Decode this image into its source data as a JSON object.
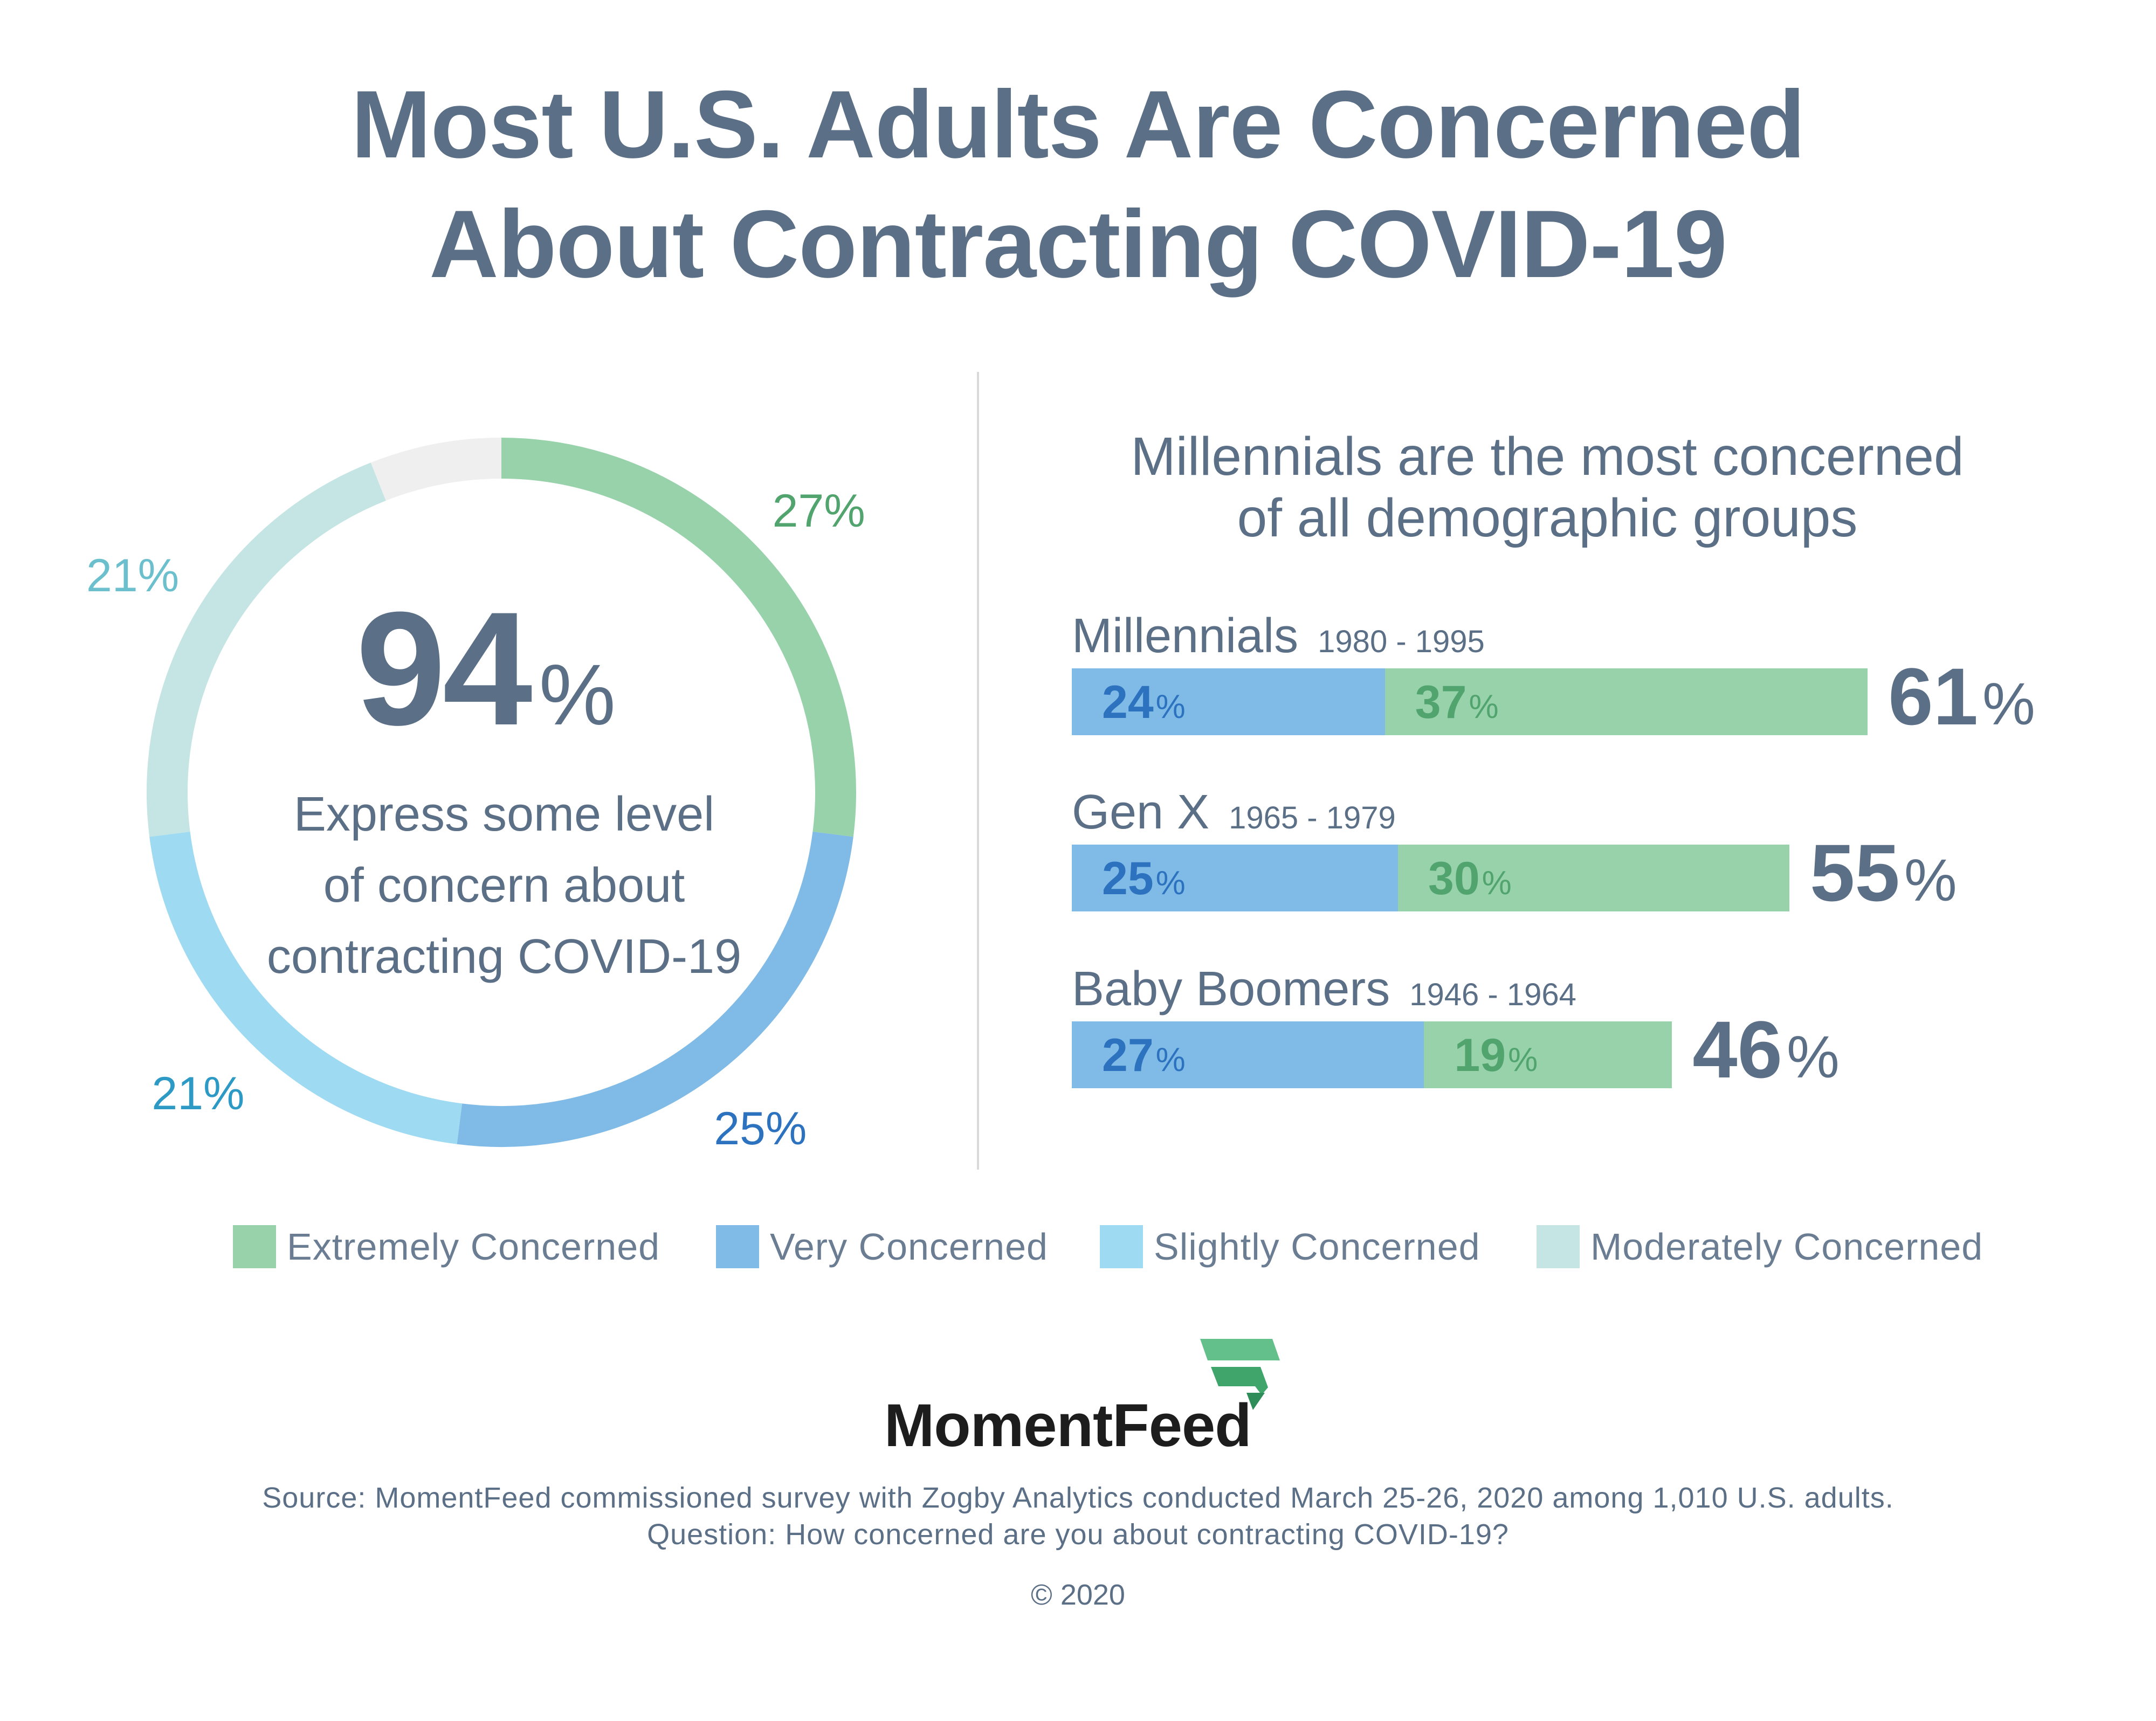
{
  "title_line1": "Most U.S. Adults Are Concerned",
  "title_line2": "About Contracting COVID-19",
  "donut": {
    "headline_value": "94",
    "headline_unit": "%",
    "caption_line1": "Express some level",
    "caption_line2": "of concern about",
    "caption_line3": "contracting COVID-19"
  },
  "bars": {
    "subtitle_line1": "Millennials are the most concerned",
    "subtitle_line2": "of all demographic groups"
  },
  "colors": {
    "extremely": "#97d2ab",
    "very": "#7fbbe6",
    "slightly": "#9edaf1",
    "moderately": "#c4e5e3",
    "unconcerned": "#efefef",
    "very_text": "#2c72bf",
    "extremely_text": "#52a46e"
  },
  "chart_data": [
    {
      "type": "pie",
      "categories": [
        "Extremely Concerned",
        "Very Concerned",
        "Slightly Concerned",
        "Moderately Concerned"
      ],
      "values": [
        27,
        25,
        21,
        21
      ],
      "labels": [
        "27%",
        "25%",
        "21%",
        "21%"
      ]
    },
    {
      "type": "bar",
      "categories": [
        "Millennials",
        "Gen X",
        "Baby Boomers"
      ],
      "years": [
        "1980 - 1995",
        "1965 - 1979",
        "1946 - 1964"
      ],
      "series": [
        {
          "name": "Very Concerned",
          "values": [
            24,
            25,
            27
          ]
        },
        {
          "name": "Extremely Concerned",
          "values": [
            37,
            30,
            19
          ]
        }
      ],
      "totals": [
        61,
        55,
        46
      ],
      "unit": "%"
    }
  ],
  "legend": [
    {
      "label": "Extremely Concerned"
    },
    {
      "label": "Very Concerned"
    },
    {
      "label": "Slightly Concerned"
    },
    {
      "label": "Moderately Concerned"
    }
  ],
  "logo": {
    "name": "MomentFeed"
  },
  "footer": {
    "source_line1": "Source: MomentFeed commissioned survey with Zogby Analytics conducted March 25-26, 2020 among 1,010 U.S. adults.",
    "source_line2": "Question: How concerned are you about contracting COVID-19?",
    "copyright": "© 2020"
  }
}
